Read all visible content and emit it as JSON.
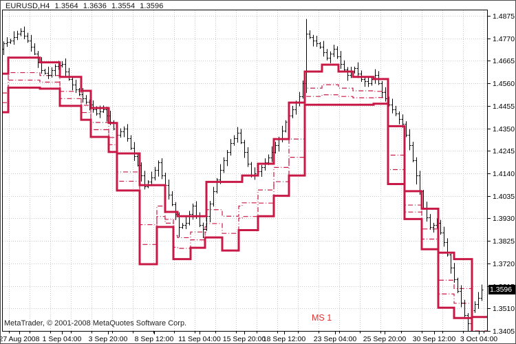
{
  "window": {
    "title_symbol": "EURUSD,H4",
    "title_open": "1.3564",
    "title_high": "1.3636",
    "title_low": "1.3554",
    "title_close": "1.3596"
  },
  "footer": {
    "copyright": "MetaTrader, © 2001-2008 MetaQuotes Software Corp."
  },
  "indicator_label": "MS 1",
  "price_badge": "1.3596",
  "chart_data": {
    "type": "candlestick",
    "symbol": "EURUSD",
    "timeframe": "H4",
    "title_ohlc": {
      "open": 1.3564,
      "high": 1.3636,
      "low": 1.3554,
      "close": 1.3596
    },
    "current_price": 1.3596,
    "ylim": [
      1.334,
      1.492
    ],
    "scale": {
      "y0": 23,
      "p0": 1.4875,
      "dpdy": 0.000321,
      "plot": [
        3,
        14,
        709,
        482
      ]
    },
    "y_axis": {
      "tick_labels": [
        "1.4875",
        "1.4770",
        "1.4665",
        "1.4560",
        "1.4455",
        "1.4350",
        "1.4245",
        "1.4140",
        "1.4035",
        "1.3930",
        "1.3825",
        "1.3720",
        "1.3615",
        "1.3510",
        "1.3405"
      ]
    },
    "x_axis": {
      "tick_labels": [
        "27 Aug 2008",
        "1 Sep 04:00",
        "3 Sep 20:00",
        "8 Sep 12:00",
        "11 Sep 04:00",
        "15 Sep 20:00",
        "18 Sep 12:00",
        "23 Sep 04:00",
        "25 Sep 20:00",
        "30 Sep 12:00",
        "3 Oct 04:00"
      ],
      "centers": [
        28,
        90,
        157,
        224,
        290,
        355,
        413,
        487,
        559,
        631,
        696
      ]
    },
    "grid": {
      "v_start": 13,
      "v_step": 30,
      "v_count": 24,
      "color": "#c9c9c9"
    },
    "bars": {
      "color": "#000000",
      "x_start": 5,
      "x_step": 5,
      "first_open": 1.472,
      "closes": [
        1.4745,
        1.4753,
        1.476,
        1.4775,
        1.479,
        1.4805,
        1.4783,
        1.476,
        1.473,
        1.47,
        1.466,
        1.462,
        1.461,
        1.46,
        1.462,
        1.464,
        1.4645,
        1.465,
        1.4615,
        1.458,
        1.4555,
        1.453,
        1.451,
        1.449,
        1.4475,
        1.446,
        1.444,
        1.442,
        1.443,
        1.444,
        1.441,
        1.438,
        1.435,
        1.432,
        1.4335,
        1.435,
        1.4305,
        1.426,
        1.422,
        1.418,
        1.413,
        1.408,
        1.41,
        1.412,
        1.4155,
        1.419,
        1.413,
        1.4085,
        1.404,
        1.3995,
        1.395,
        1.389,
        1.39,
        1.391,
        1.395,
        1.399,
        1.3945,
        1.39,
        1.388,
        1.394,
        1.4,
        1.4055,
        1.411,
        1.4155,
        1.42,
        1.424,
        1.428,
        1.4305,
        1.433,
        1.4285,
        1.424,
        1.4185,
        1.413,
        1.414,
        1.415,
        1.417,
        1.419,
        1.4215,
        1.424,
        1.427,
        1.43,
        1.434,
        1.438,
        1.441,
        1.444,
        1.447,
        1.45,
        1.456,
        1.479,
        1.4775,
        1.476,
        1.4745,
        1.473,
        1.4705,
        1.468,
        1.47,
        1.472,
        1.4685,
        1.465,
        1.4625,
        1.46,
        1.4615,
        1.463,
        1.4605,
        1.458,
        1.457,
        1.456,
        1.458,
        1.46,
        1.456,
        1.452,
        1.449,
        1.446,
        1.444,
        1.442,
        1.4395,
        1.437,
        1.432,
        1.427,
        1.42,
        1.413,
        1.4055,
        1.398,
        1.3935,
        1.389,
        1.39,
        1.391,
        1.3865,
        1.382,
        1.376,
        1.37,
        1.3645,
        1.359,
        1.3535,
        1.348,
        1.344,
        1.35,
        1.353,
        1.356,
        1.3596
      ],
      "wick_cycle": [
        0.0011,
        0.0022,
        0.0008,
        0.0028,
        0.0015,
        0.0009,
        0.002,
        0.0013,
        0.0026,
        0.0017
      ],
      "wick_overrides": {
        "5": [
          0.0012,
          0.001
        ],
        "45": [
          0.001,
          0.003
        ],
        "51": [
          0.0008,
          0.0048
        ],
        "58": [
          0.001,
          0.0042
        ],
        "88": [
          0.007,
          0.0045
        ],
        "120": [
          0.0015,
          0.0042
        ],
        "135": [
          0.0008,
          0.0055
        ],
        "139": [
          0.0025,
          0.0015
        ]
      }
    },
    "indicator": {
      "name": "MS 1",
      "color": "#c81846",
      "line_width": 3,
      "mid_fractions": [
        0.5,
        0.75
      ],
      "upper_steps": [
        [
          3,
          12,
          1.4605
        ],
        [
          12,
          58,
          1.468
        ],
        [
          58,
          87,
          1.4658
        ],
        [
          87,
          118,
          1.459
        ],
        [
          118,
          132,
          1.4525
        ],
        [
          132,
          158,
          1.4445
        ],
        [
          158,
          170,
          1.4375
        ],
        [
          170,
          203,
          1.4233
        ],
        [
          203,
          240,
          1.4085
        ],
        [
          240,
          258,
          1.396
        ],
        [
          258,
          300,
          1.394
        ],
        [
          300,
          322,
          1.41
        ],
        [
          322,
          352,
          1.41
        ],
        [
          352,
          375,
          1.413
        ],
        [
          375,
          398,
          1.4185
        ],
        [
          398,
          420,
          1.43
        ],
        [
          420,
          443,
          1.447
        ],
        [
          443,
          468,
          1.4615
        ],
        [
          468,
          492,
          1.4647
        ],
        [
          492,
          513,
          1.4615
        ],
        [
          513,
          543,
          1.459
        ],
        [
          543,
          564,
          1.458
        ],
        [
          564,
          588,
          1.436
        ],
        [
          588,
          613,
          1.4057
        ],
        [
          613,
          637,
          1.3975
        ],
        [
          637,
          660,
          1.377
        ],
        [
          660,
          686,
          1.374
        ],
        [
          686,
          709,
          1.347
        ]
      ],
      "lower_steps": [
        [
          3,
          12,
          1.4425
        ],
        [
          12,
          58,
          1.454
        ],
        [
          58,
          87,
          1.4535
        ],
        [
          87,
          118,
          1.4455
        ],
        [
          118,
          132,
          1.439
        ],
        [
          132,
          158,
          1.431
        ],
        [
          158,
          170,
          1.424
        ],
        [
          170,
          203,
          1.406
        ],
        [
          203,
          228,
          1.3716
        ],
        [
          228,
          252,
          1.389
        ],
        [
          252,
          277,
          1.374
        ],
        [
          277,
          298,
          1.3793
        ],
        [
          298,
          323,
          1.3841
        ],
        [
          323,
          347,
          1.378
        ],
        [
          347,
          375,
          1.3875
        ],
        [
          375,
          398,
          1.394
        ],
        [
          398,
          420,
          1.4035
        ],
        [
          420,
          443,
          1.413
        ],
        [
          443,
          513,
          1.446
        ],
        [
          513,
          543,
          1.446
        ],
        [
          543,
          564,
          1.4465
        ],
        [
          564,
          588,
          1.409
        ],
        [
          588,
          613,
          1.3927
        ],
        [
          613,
          637,
          1.3786
        ],
        [
          637,
          660,
          1.3513
        ],
        [
          660,
          686,
          1.3465
        ],
        [
          686,
          709,
          1.334
        ]
      ]
    },
    "badge": {
      "text": "1.3596",
      "bg": "#000000",
      "fg": "#ffffff"
    }
  }
}
